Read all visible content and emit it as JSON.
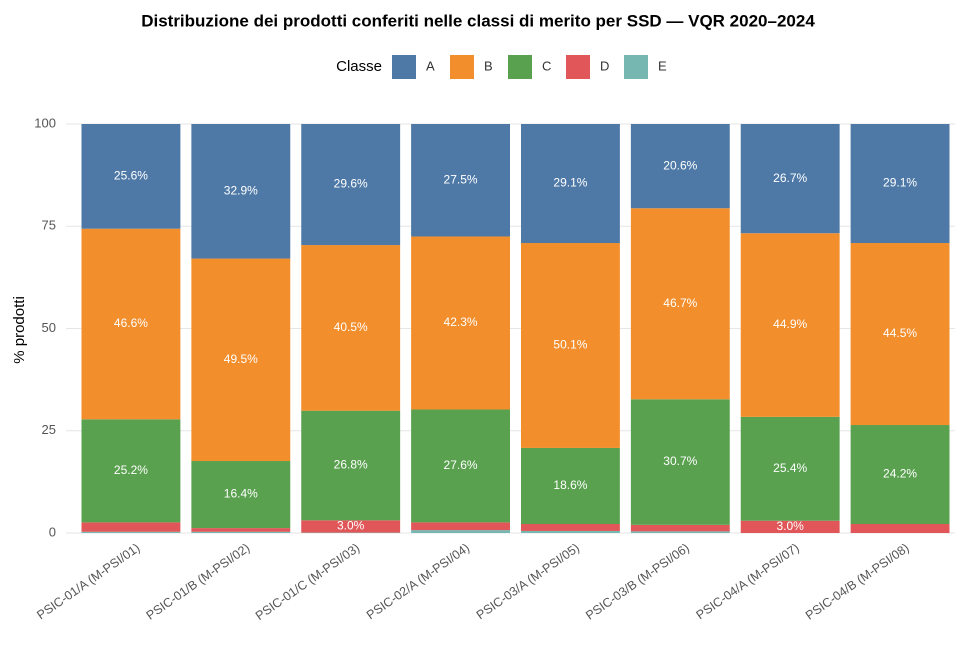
{
  "chart_data": {
    "type": "stacked_bar",
    "title": "Distribuzione dei prodotti conferiti nelle classi di merito per SSD — VQR 2020–2024",
    "y_label": "% prodotti",
    "legend_title": "Classe",
    "categories": [
      "PSIC-01/A (M-PSI/01)",
      "PSIC-01/B (M-PSI/02)",
      "PSIC-01/C (M-PSI/03)",
      "PSIC-02/A (M-PSI/04)",
      "PSIC-03/A (M-PSI/05)",
      "PSIC-03/B (M-PSI/06)",
      "PSIC-04/A (M-PSI/07)",
      "PSIC-04/B (M-PSI/08)"
    ],
    "series": [
      {
        "name": "E",
        "color": "#76b7b2",
        "values": [
          0.3,
          0.3,
          0.1,
          0.7,
          0.5,
          0.4,
          0,
          0
        ],
        "value_labels": [
          null,
          null,
          null,
          null,
          null,
          null,
          null,
          null
        ]
      },
      {
        "name": "D",
        "color": "#e15759",
        "values": [
          2.3,
          0.9,
          3.0,
          1.9,
          1.7,
          1.6,
          3.0,
          2.2
        ],
        "value_labels": [
          null,
          null,
          "3.0%",
          null,
          null,
          null,
          "3.0%",
          null
        ]
      },
      {
        "name": "C",
        "color": "#59a14f",
        "values": [
          25.2,
          16.4,
          26.8,
          27.6,
          18.6,
          30.7,
          25.4,
          24.2
        ],
        "value_labels": [
          "25.2%",
          "16.4%",
          "26.8%",
          "27.6%",
          "18.6%",
          "30.7%",
          "25.4%",
          "24.2%"
        ]
      },
      {
        "name": "B",
        "color": "#f28e2b",
        "values": [
          46.6,
          49.5,
          40.5,
          42.3,
          50.1,
          46.7,
          44.9,
          44.5
        ],
        "value_labels": [
          "46.6%",
          "49.5%",
          "40.5%",
          "42.3%",
          "50.1%",
          "46.7%",
          "44.9%",
          "44.5%"
        ]
      },
      {
        "name": "A",
        "color": "#4e79a7",
        "values": [
          25.6,
          32.9,
          29.6,
          27.5,
          29.1,
          20.6,
          26.7,
          29.1
        ],
        "value_labels": [
          "25.6%",
          "32.9%",
          "29.6%",
          "27.5%",
          "29.1%",
          "20.6%",
          "26.7%",
          "29.1%"
        ]
      }
    ],
    "legend_order": [
      "A",
      "B",
      "C",
      "D",
      "E"
    ],
    "ylim": [
      0,
      100
    ],
    "yticks": [
      0,
      25,
      50,
      75,
      100
    ],
    "grid": true
  }
}
